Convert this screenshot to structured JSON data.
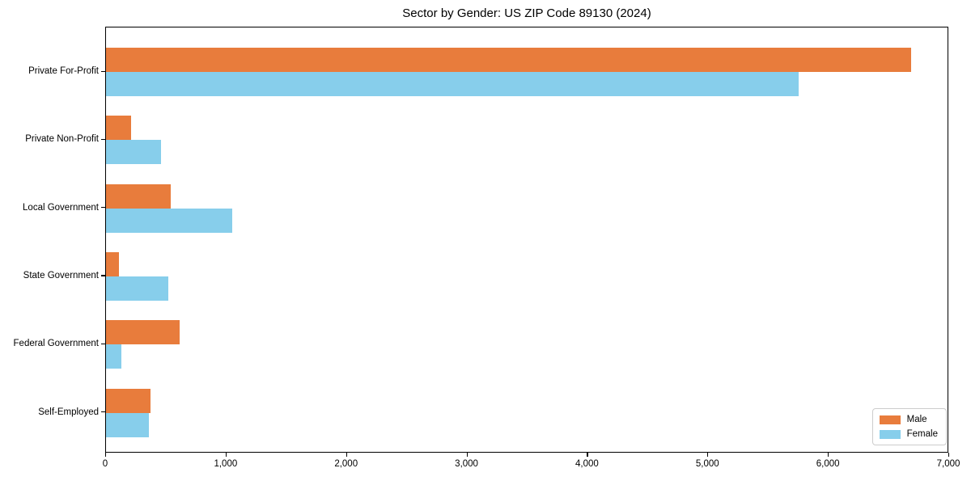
{
  "figure": {
    "background": "#ffffff",
    "text_color": "#000000"
  },
  "chart_data": {
    "type": "bar",
    "orientation": "horizontal",
    "title": "Sector by Gender: US ZIP Code 89130 (2024)",
    "categories": [
      "Private For-Profit",
      "Private Non-Profit",
      "Local Government",
      "State Government",
      "Federal Government",
      "Self-Employed"
    ],
    "series": [
      {
        "name": "Male",
        "color": "#e87c3c",
        "values": [
          6700,
          210,
          540,
          110,
          610,
          370
        ]
      },
      {
        "name": "Female",
        "color": "#87ceeb",
        "values": [
          5760,
          460,
          1050,
          520,
          130,
          360
        ]
      }
    ],
    "xlabel": "",
    "ylabel": "",
    "xlim": [
      0,
      7000
    ],
    "x_ticks": [
      0,
      1000,
      2000,
      3000,
      4000,
      5000,
      6000,
      7000
    ],
    "x_tick_labels": [
      "0",
      "1,000",
      "2,000",
      "3,000",
      "4,000",
      "5,000",
      "6,000",
      "7,000"
    ],
    "grid": false,
    "legend": {
      "position": "lower right",
      "entries": [
        "Male",
        "Female"
      ]
    }
  }
}
